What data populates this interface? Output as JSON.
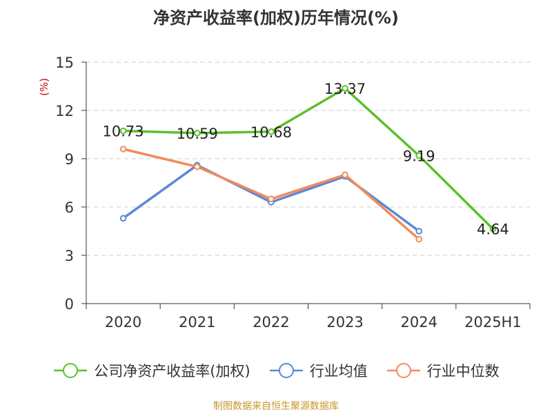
{
  "title": "净资产收益率(加权)历年情况(%)",
  "footer": "制图数据来自恒生聚源数据库",
  "colors": {
    "company": "#5cbf2a",
    "industry_avg": "#5b87d6",
    "industry_median": "#f28b5b",
    "axis": "#333333",
    "grid": "#cccccc",
    "unit": "#cc0000"
  },
  "chart_data": {
    "type": "line",
    "title": "净资产收益率(加权)历年情况(%)",
    "ylabel": "(%)",
    "xlabel": "",
    "categories": [
      "2020",
      "2021",
      "2022",
      "2023",
      "2024",
      "2025H1"
    ],
    "ylim": [
      0,
      15
    ],
    "yticks": [
      0,
      3,
      6,
      9,
      12,
      15
    ],
    "grid": true,
    "legend_position": "bottom",
    "series": [
      {
        "name": "公司净资产收益率(加权)",
        "color": "#5cbf2a",
        "values": [
          10.73,
          10.59,
          10.68,
          13.37,
          9.19,
          4.64
        ],
        "labels": [
          "10.73",
          "10.59",
          "10.68",
          "13.37",
          "9.19",
          "4.64"
        ]
      },
      {
        "name": "行业均值",
        "color": "#5b87d6",
        "values": [
          5.3,
          8.6,
          6.3,
          7.9,
          4.5,
          null
        ],
        "labels": null
      },
      {
        "name": "行业中位数",
        "color": "#f28b5b",
        "values": [
          9.6,
          8.5,
          6.5,
          8.0,
          4.0,
          null
        ],
        "labels": null
      }
    ]
  }
}
